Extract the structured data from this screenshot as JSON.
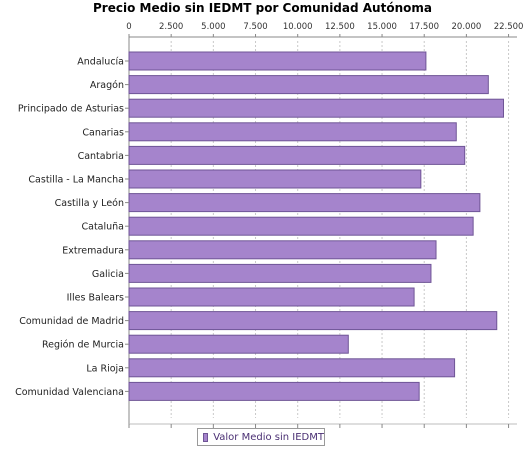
{
  "chart_data": {
    "type": "bar",
    "orientation": "horizontal",
    "title": "Precio Medio sin IEDMT por Comunidad Autónoma",
    "xlabel": "",
    "ylabel": "",
    "xlim": [
      0,
      23000
    ],
    "x_ticks": [
      0,
      2500,
      5000,
      7500,
      10000,
      12500,
      15000,
      17500,
      20000,
      22500
    ],
    "x_tick_labels": [
      "0",
      "2.500",
      "5.000",
      "7.500",
      "10.000",
      "12.500",
      "15.000",
      "17.500",
      "20.000",
      "22.500"
    ],
    "x_axis_position": "top",
    "grid": true,
    "legend_position": "bottom",
    "bar_color": "#a584cc",
    "bar_edge_color": "#6f5596",
    "categories": [
      "Andalucía",
      "Aragón",
      "Principado de Asturias",
      "Canarias",
      "Cantabria",
      "Castilla - La Mancha",
      "Castilla y León",
      "Cataluña",
      "Extremadura",
      "Galicia",
      "Illes Balears",
      "Comunidad de Madrid",
      "Región de Murcia",
      "La Rioja",
      "Comunidad Valenciana"
    ],
    "series": [
      {
        "name": "Valor Medio sin IEDMT",
        "values": [
          17600,
          21300,
          22200,
          19400,
          19900,
          17300,
          20800,
          20400,
          18200,
          17900,
          16900,
          21800,
          13000,
          19300,
          17200
        ]
      }
    ]
  }
}
